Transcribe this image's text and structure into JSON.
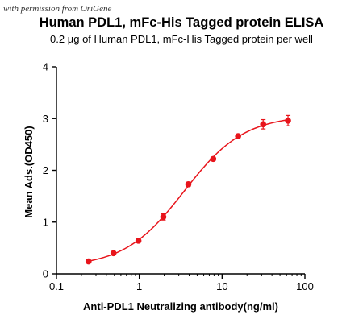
{
  "watermark": "with permission from OriGene",
  "chart_data": {
    "type": "line",
    "title": "Human PDL1,  mFc-His Tagged protein ELISA",
    "subtitle": "0.2 µg of Human PDL1, mFc-His Tagged protein per well",
    "xlabel": "Anti-PDL1 Neutralizing antibody(ng/ml)",
    "ylabel": "Mean Ads.(OD450)",
    "x_scale": "log",
    "xlim": [
      0.1,
      100
    ],
    "ylim": [
      0,
      4
    ],
    "x_ticks": [
      "0.1",
      "1",
      "10",
      "100"
    ],
    "y_ticks": [
      "0",
      "1",
      "2",
      "3",
      "4"
    ],
    "grid": false,
    "series": [
      {
        "color": "#e8141b",
        "points": [
          {
            "x": 0.244,
            "y": 0.24,
            "err": 0.02
          },
          {
            "x": 0.488,
            "y": 0.4,
            "err": 0.03
          },
          {
            "x": 0.977,
            "y": 0.64,
            "err": 0.03
          },
          {
            "x": 1.95,
            "y": 1.1,
            "err": 0.06
          },
          {
            "x": 3.91,
            "y": 1.73,
            "err": 0.04
          },
          {
            "x": 7.81,
            "y": 2.22,
            "err": 0.03
          },
          {
            "x": 15.6,
            "y": 2.66,
            "err": 0.03
          },
          {
            "x": 31.3,
            "y": 2.89,
            "err": 0.09
          },
          {
            "x": 62.5,
            "y": 2.96,
            "err": 0.1
          }
        ]
      }
    ]
  }
}
